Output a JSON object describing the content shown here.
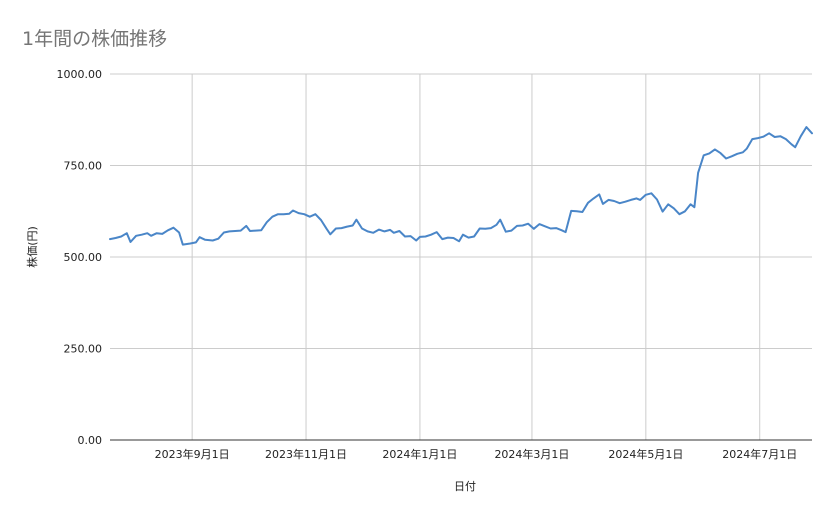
{
  "chart_data": {
    "type": "line",
    "title": "1年間の株価推移",
    "xlabel": "日付",
    "ylabel": "株価(円)",
    "ylim": [
      0,
      1000
    ],
    "xlim": [
      "2023-07-19",
      "2024-07-29"
    ],
    "yticks": [
      "0.00",
      "250.00",
      "500.00",
      "750.00",
      "1000.00"
    ],
    "ytick_values": [
      0,
      250,
      500,
      750,
      1000
    ],
    "xticks": [
      {
        "date": "2023-09-01",
        "label": "2023年9月1日"
      },
      {
        "date": "2023-11-01",
        "label": "2023年11月1日"
      },
      {
        "date": "2024-01-01",
        "label": "2024年1月1日"
      },
      {
        "date": "2024-03-01",
        "label": "2024年3月1日"
      },
      {
        "date": "2024-05-01",
        "label": "2024年5月1日"
      },
      {
        "date": "2024-07-01",
        "label": "2024年7月1日"
      }
    ],
    "grid": true,
    "line_color": "#4a86c8",
    "series": [
      {
        "points": [
          [
            "2023-07-19",
            549
          ],
          [
            "2023-07-22",
            552
          ],
          [
            "2023-07-25",
            556
          ],
          [
            "2023-07-28",
            565
          ],
          [
            "2023-07-30",
            541
          ],
          [
            "2023-08-02",
            558
          ],
          [
            "2023-08-05",
            561
          ],
          [
            "2023-08-08",
            565
          ],
          [
            "2023-08-10",
            558
          ],
          [
            "2023-08-13",
            565
          ],
          [
            "2023-08-16",
            563
          ],
          [
            "2023-08-19",
            573
          ],
          [
            "2023-08-22",
            580
          ],
          [
            "2023-08-25",
            567
          ],
          [
            "2023-08-27",
            534
          ],
          [
            "2023-08-31",
            537
          ],
          [
            "2023-09-03",
            540
          ],
          [
            "2023-09-05",
            554
          ],
          [
            "2023-09-08",
            547
          ],
          [
            "2023-09-12",
            545
          ],
          [
            "2023-09-15",
            550
          ],
          [
            "2023-09-18",
            567
          ],
          [
            "2023-09-21",
            570
          ],
          [
            "2023-09-24",
            571
          ],
          [
            "2023-09-27",
            572
          ],
          [
            "2023-09-30",
            585
          ],
          [
            "2023-10-02",
            571
          ],
          [
            "2023-10-05",
            572
          ],
          [
            "2023-10-08",
            573
          ],
          [
            "2023-10-11",
            595
          ],
          [
            "2023-10-14",
            610
          ],
          [
            "2023-10-17",
            617
          ],
          [
            "2023-10-20",
            617
          ],
          [
            "2023-10-23",
            618
          ],
          [
            "2023-10-25",
            627
          ],
          [
            "2023-10-28",
            620
          ],
          [
            "2023-10-31",
            617
          ],
          [
            "2023-11-03",
            610
          ],
          [
            "2023-11-06",
            617
          ],
          [
            "2023-11-09",
            601
          ],
          [
            "2023-11-12",
            577
          ],
          [
            "2023-11-14",
            562
          ],
          [
            "2023-11-17",
            578
          ],
          [
            "2023-11-20",
            579
          ],
          [
            "2023-11-23",
            583
          ],
          [
            "2023-11-26",
            586
          ],
          [
            "2023-11-28",
            602
          ],
          [
            "2023-12-01",
            578
          ],
          [
            "2023-12-04",
            570
          ],
          [
            "2023-12-07",
            566
          ],
          [
            "2023-12-10",
            575
          ],
          [
            "2023-12-13",
            570
          ],
          [
            "2023-12-16",
            574
          ],
          [
            "2023-12-18",
            566
          ],
          [
            "2023-12-21",
            571
          ],
          [
            "2023-12-24",
            556
          ],
          [
            "2023-12-27",
            557
          ],
          [
            "2023-12-30",
            545
          ],
          [
            "2024-01-01",
            555
          ],
          [
            "2024-01-04",
            556
          ],
          [
            "2024-01-07",
            561
          ],
          [
            "2024-01-10",
            568
          ],
          [
            "2024-01-13",
            549
          ],
          [
            "2024-01-16",
            553
          ],
          [
            "2024-01-19",
            552
          ],
          [
            "2024-01-22",
            543
          ],
          [
            "2024-01-24",
            561
          ],
          [
            "2024-01-27",
            553
          ],
          [
            "2024-01-30",
            556
          ],
          [
            "2024-02-02",
            578
          ],
          [
            "2024-02-05",
            577
          ],
          [
            "2024-02-08",
            579
          ],
          [
            "2024-02-11",
            588
          ],
          [
            "2024-02-13",
            602
          ],
          [
            "2024-02-16",
            569
          ],
          [
            "2024-02-19",
            572
          ],
          [
            "2024-02-22",
            585
          ],
          [
            "2024-02-25",
            586
          ],
          [
            "2024-02-28",
            591
          ],
          [
            "2024-03-02",
            577
          ],
          [
            "2024-03-05",
            590
          ],
          [
            "2024-03-08",
            584
          ],
          [
            "2024-03-11",
            578
          ],
          [
            "2024-03-14",
            579
          ],
          [
            "2024-03-17",
            573
          ],
          [
            "2024-03-19",
            568
          ],
          [
            "2024-03-22",
            626
          ],
          [
            "2024-03-25",
            625
          ],
          [
            "2024-03-28",
            623
          ],
          [
            "2024-03-31",
            648
          ],
          [
            "2024-04-03",
            660
          ],
          [
            "2024-04-06",
            671
          ],
          [
            "2024-04-08",
            645
          ],
          [
            "2024-04-11",
            656
          ],
          [
            "2024-04-14",
            653
          ],
          [
            "2024-04-17",
            647
          ],
          [
            "2024-04-20",
            651
          ],
          [
            "2024-04-23",
            656
          ],
          [
            "2024-04-26",
            660
          ],
          [
            "2024-04-28",
            656
          ],
          [
            "2024-05-01",
            670
          ],
          [
            "2024-05-04",
            674
          ],
          [
            "2024-05-07",
            657
          ],
          [
            "2024-05-10",
            624
          ],
          [
            "2024-05-13",
            644
          ],
          [
            "2024-05-16",
            633
          ],
          [
            "2024-05-19",
            617
          ],
          [
            "2024-05-22",
            625
          ],
          [
            "2024-05-25",
            644
          ],
          [
            "2024-05-27",
            636
          ],
          [
            "2024-05-29",
            730
          ],
          [
            "2024-06-01",
            778
          ],
          [
            "2024-06-04",
            783
          ],
          [
            "2024-06-07",
            794
          ],
          [
            "2024-06-10",
            784
          ],
          [
            "2024-06-13",
            769
          ],
          [
            "2024-06-16",
            775
          ],
          [
            "2024-06-19",
            782
          ],
          [
            "2024-06-22",
            786
          ],
          [
            "2024-06-24",
            796
          ],
          [
            "2024-06-27",
            822
          ],
          [
            "2024-06-30",
            825
          ],
          [
            "2024-07-03",
            829
          ],
          [
            "2024-07-06",
            838
          ],
          [
            "2024-07-09",
            828
          ],
          [
            "2024-07-12",
            830
          ],
          [
            "2024-07-15",
            822
          ],
          [
            "2024-07-18",
            808
          ],
          [
            "2024-07-20",
            800
          ],
          [
            "2024-07-23",
            830
          ],
          [
            "2024-07-26",
            855
          ],
          [
            "2024-07-29",
            838
          ]
        ]
      }
    ]
  }
}
